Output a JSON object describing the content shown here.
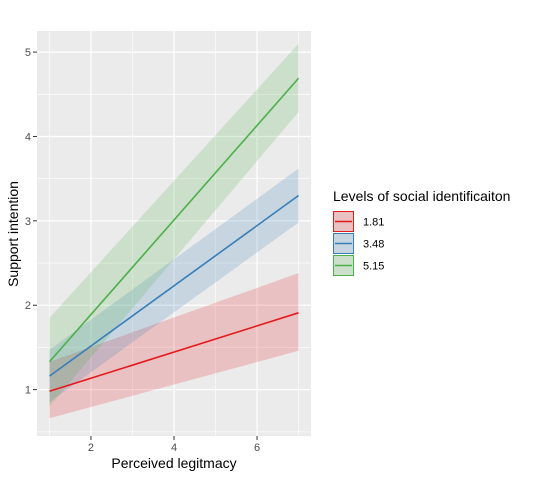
{
  "chart_data": {
    "type": "line",
    "xlabel": "Perceived legitmacy",
    "ylabel": "Support intention",
    "xlim": [
      0.7,
      7.3
    ],
    "ylim": [
      0.45,
      5.25
    ],
    "x_ticks": [
      2,
      4,
      6
    ],
    "y_ticks": [
      1,
      2,
      3,
      4,
      5
    ],
    "grid": true,
    "legend_title": "Levels of social identificaiton",
    "legend_position": "right",
    "series": [
      {
        "name": "1.81",
        "color": "#e41a1c",
        "x": [
          1,
          7
        ],
        "y": [
          0.98,
          1.91
        ],
        "ci_lower": [
          0.66,
          1.46
        ],
        "ci_upper": [
          1.33,
          2.38
        ]
      },
      {
        "name": "3.48",
        "color": "#377eb8",
        "x": [
          1,
          7
        ],
        "y": [
          1.16,
          3.3
        ],
        "ci_lower": [
          0.85,
          2.98
        ],
        "ci_upper": [
          1.47,
          3.62
        ]
      },
      {
        "name": "5.15",
        "color": "#4daf4a",
        "x": [
          1,
          7
        ],
        "y": [
          1.33,
          4.69
        ],
        "ci_lower": [
          0.8,
          4.29
        ],
        "ci_upper": [
          1.85,
          5.1
        ]
      }
    ]
  }
}
